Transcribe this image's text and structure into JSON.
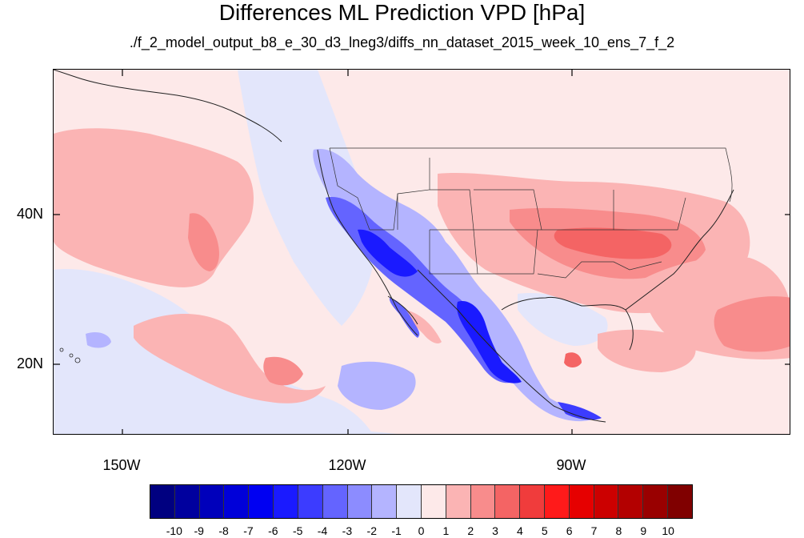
{
  "title": "Differences ML Prediction VPD [hPa]",
  "subtitle": "./f_2_model_output_b8_e_30_d3_lneg3/diffs_nn_dataset_2015_week_10_ens_7_f_2",
  "lat_labels": [
    "40N",
    "20N"
  ],
  "lon_labels": [
    "150W",
    "120W",
    "90W"
  ],
  "colorbar": {
    "labels": [
      "-10",
      "-9",
      "-8",
      "-7",
      "-6",
      "-5",
      "-4",
      "-3",
      "-2",
      "-1",
      "0",
      "1",
      "2",
      "3",
      "4",
      "5",
      "6",
      "7",
      "8",
      "9",
      "10"
    ],
    "colors": [
      "#000080",
      "#00009e",
      "#0000bb",
      "#0000d9",
      "#0000f2",
      "#1a1aff",
      "#3c3cff",
      "#6464ff",
      "#8c8cff",
      "#b4b4ff",
      "#e3e6fb",
      "#fde9e9",
      "#fbb4b4",
      "#f88c8c",
      "#f46464",
      "#f03c3c",
      "#ff1a1a",
      "#e60000",
      "#cc0000",
      "#b30000",
      "#990000",
      "#800000"
    ]
  },
  "colors": {
    "background": "#fde9e9",
    "light_blue": "#e3e6fb",
    "blue_mid": "#8c8cff",
    "blue_dark": "#1a1aff",
    "pink": "#fbb4b4",
    "red_mid": "#f46464",
    "red_strong": "#e02020"
  }
}
